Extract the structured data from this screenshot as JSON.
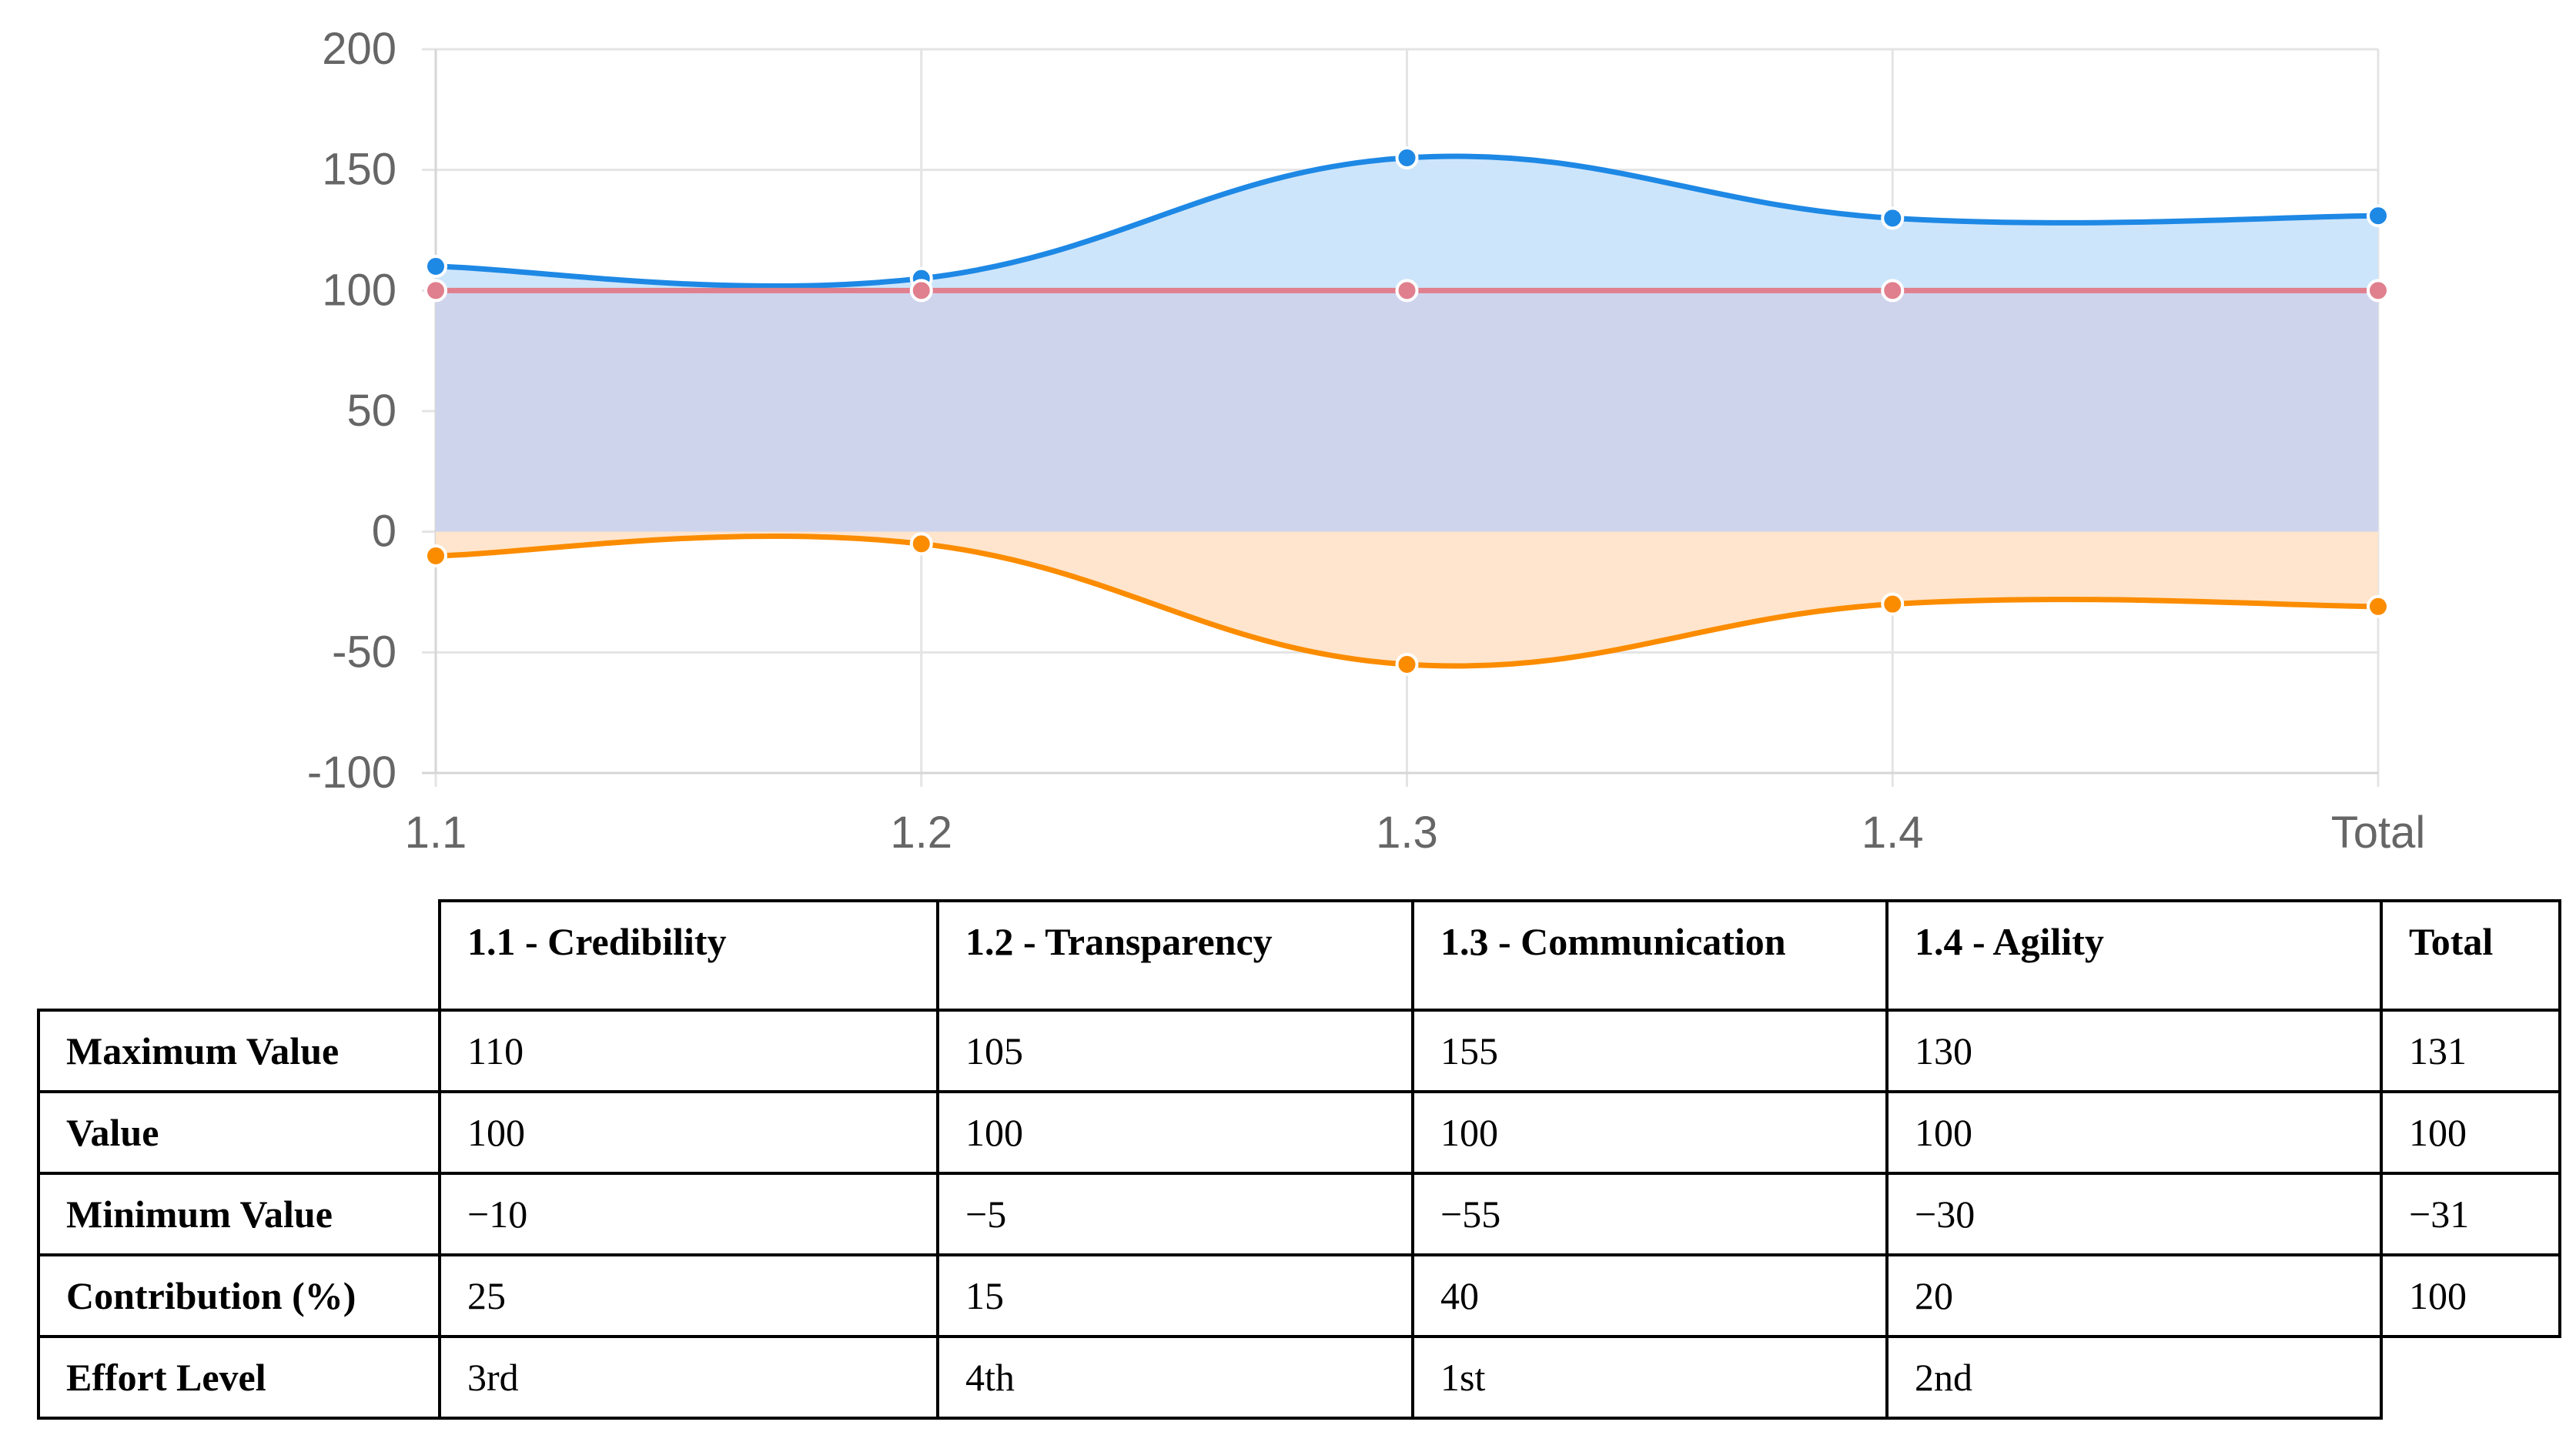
{
  "chart_data": {
    "type": "area",
    "categories": [
      "1.1",
      "1.2",
      "1.3",
      "1.4",
      "Total"
    ],
    "ylim": [
      -100,
      200
    ],
    "yticks": [
      200,
      150,
      100,
      50,
      0,
      -50,
      -100
    ],
    "grid": true,
    "series": [
      {
        "values": [
          110,
          105,
          155,
          130,
          131
        ],
        "color": "#1e88e5",
        "fill": "#cde5fb"
      },
      {
        "values": [
          100,
          100,
          100,
          100,
          100
        ],
        "color": "#e07f8d",
        "fill": "#cfd4ed"
      },
      {
        "values": [
          -10,
          -5,
          -55,
          -30,
          -31
        ],
        "color": "#fb8c00",
        "fill": "#ffe5cd"
      }
    ]
  },
  "table": {
    "columns": [
      "1.1 - Credibility",
      "1.2 - Transparency",
      "1.3 - Communication",
      "1.4 - Agility",
      "Total"
    ],
    "rows": [
      {
        "label": "Maximum Value",
        "cells": [
          "110",
          "105",
          "155",
          "130",
          "131"
        ]
      },
      {
        "label": "Value",
        "cells": [
          "100",
          "100",
          "100",
          "100",
          "100"
        ]
      },
      {
        "label": "Minimum Value",
        "cells": [
          "−10",
          "−5",
          "−55",
          "−30",
          "−31"
        ]
      },
      {
        "label": "Contribution (%)",
        "cells": [
          "25",
          "15",
          "40",
          "20",
          "100"
        ]
      },
      {
        "label": "Effort Level",
        "cells": [
          "3rd",
          "4th",
          "1st",
          "2nd",
          ""
        ]
      }
    ]
  }
}
